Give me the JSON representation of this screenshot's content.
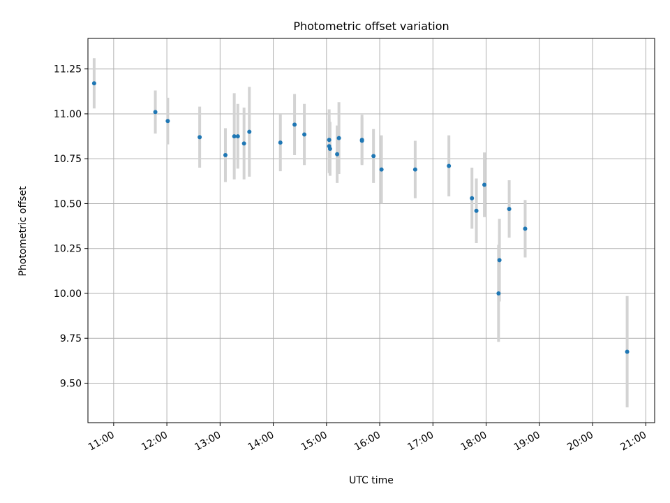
{
  "chart_data": {
    "type": "scatter",
    "title": "Photometric offset variation",
    "xlabel": "UTC time",
    "ylabel": "Photometric offset",
    "x_tick_labels": [
      "11:00",
      "12:00",
      "13:00",
      "14:00",
      "15:00",
      "16:00",
      "17:00",
      "18:00",
      "19:00",
      "20:00",
      "21:00"
    ],
    "y_tick_labels": [
      "9.50",
      "9.75",
      "10.00",
      "10.25",
      "10.50",
      "10.75",
      "11.00",
      "11.25"
    ],
    "xlim": [
      "10:31",
      "21:10"
    ],
    "ylim": [
      9.28,
      11.42
    ],
    "grid": true,
    "colors": {
      "marker": "#1f77b4",
      "errorbar": "#d3d3d3",
      "grid": "#b0b0b0"
    },
    "points": [
      {
        "x": "10:38",
        "y": 11.17,
        "err": 0.14
      },
      {
        "x": "11:47",
        "y": 11.01,
        "err": 0.12
      },
      {
        "x": "12:01",
        "y": 10.96,
        "err": 0.13
      },
      {
        "x": "12:37",
        "y": 10.87,
        "err": 0.17
      },
      {
        "x": "13:06",
        "y": 10.77,
        "err": 0.15
      },
      {
        "x": "13:16",
        "y": 10.875,
        "err": 0.24
      },
      {
        "x": "13:20",
        "y": 10.875,
        "err": 0.18
      },
      {
        "x": "13:27",
        "y": 10.835,
        "err": 0.2
      },
      {
        "x": "13:33",
        "y": 10.9,
        "err": 0.25
      },
      {
        "x": "14:08",
        "y": 10.84,
        "err": 0.16
      },
      {
        "x": "14:24",
        "y": 10.94,
        "err": 0.17
      },
      {
        "x": "14:35",
        "y": 10.885,
        "err": 0.17
      },
      {
        "x": "15:03",
        "y": 10.855,
        "err": 0.17
      },
      {
        "x": "15:03",
        "y": 10.82,
        "err": 0.15
      },
      {
        "x": "15:04",
        "y": 10.805,
        "err": 0.15
      },
      {
        "x": "15:12",
        "y": 10.775,
        "err": 0.16
      },
      {
        "x": "15:14",
        "y": 10.865,
        "err": 0.2
      },
      {
        "x": "15:40",
        "y": 10.855,
        "err": 0.14
      },
      {
        "x": "15:40",
        "y": 10.85,
        "err": 0.13
      },
      {
        "x": "15:53",
        "y": 10.765,
        "err": 0.15
      },
      {
        "x": "16:02",
        "y": 10.69,
        "err": 0.19
      },
      {
        "x": "16:40",
        "y": 10.69,
        "err": 0.16
      },
      {
        "x": "17:18",
        "y": 10.71,
        "err": 0.17
      },
      {
        "x": "17:44",
        "y": 10.53,
        "err": 0.17
      },
      {
        "x": "17:49",
        "y": 10.46,
        "err": 0.18
      },
      {
        "x": "17:58",
        "y": 10.605,
        "err": 0.18
      },
      {
        "x": "18:14",
        "y": 10.0,
        "err": 0.27
      },
      {
        "x": "18:15",
        "y": 10.185,
        "err": 0.23
      },
      {
        "x": "18:26",
        "y": 10.47,
        "err": 0.16
      },
      {
        "x": "18:44",
        "y": 10.36,
        "err": 0.16
      },
      {
        "x": "20:39",
        "y": 9.675,
        "err": 0.31
      }
    ]
  }
}
